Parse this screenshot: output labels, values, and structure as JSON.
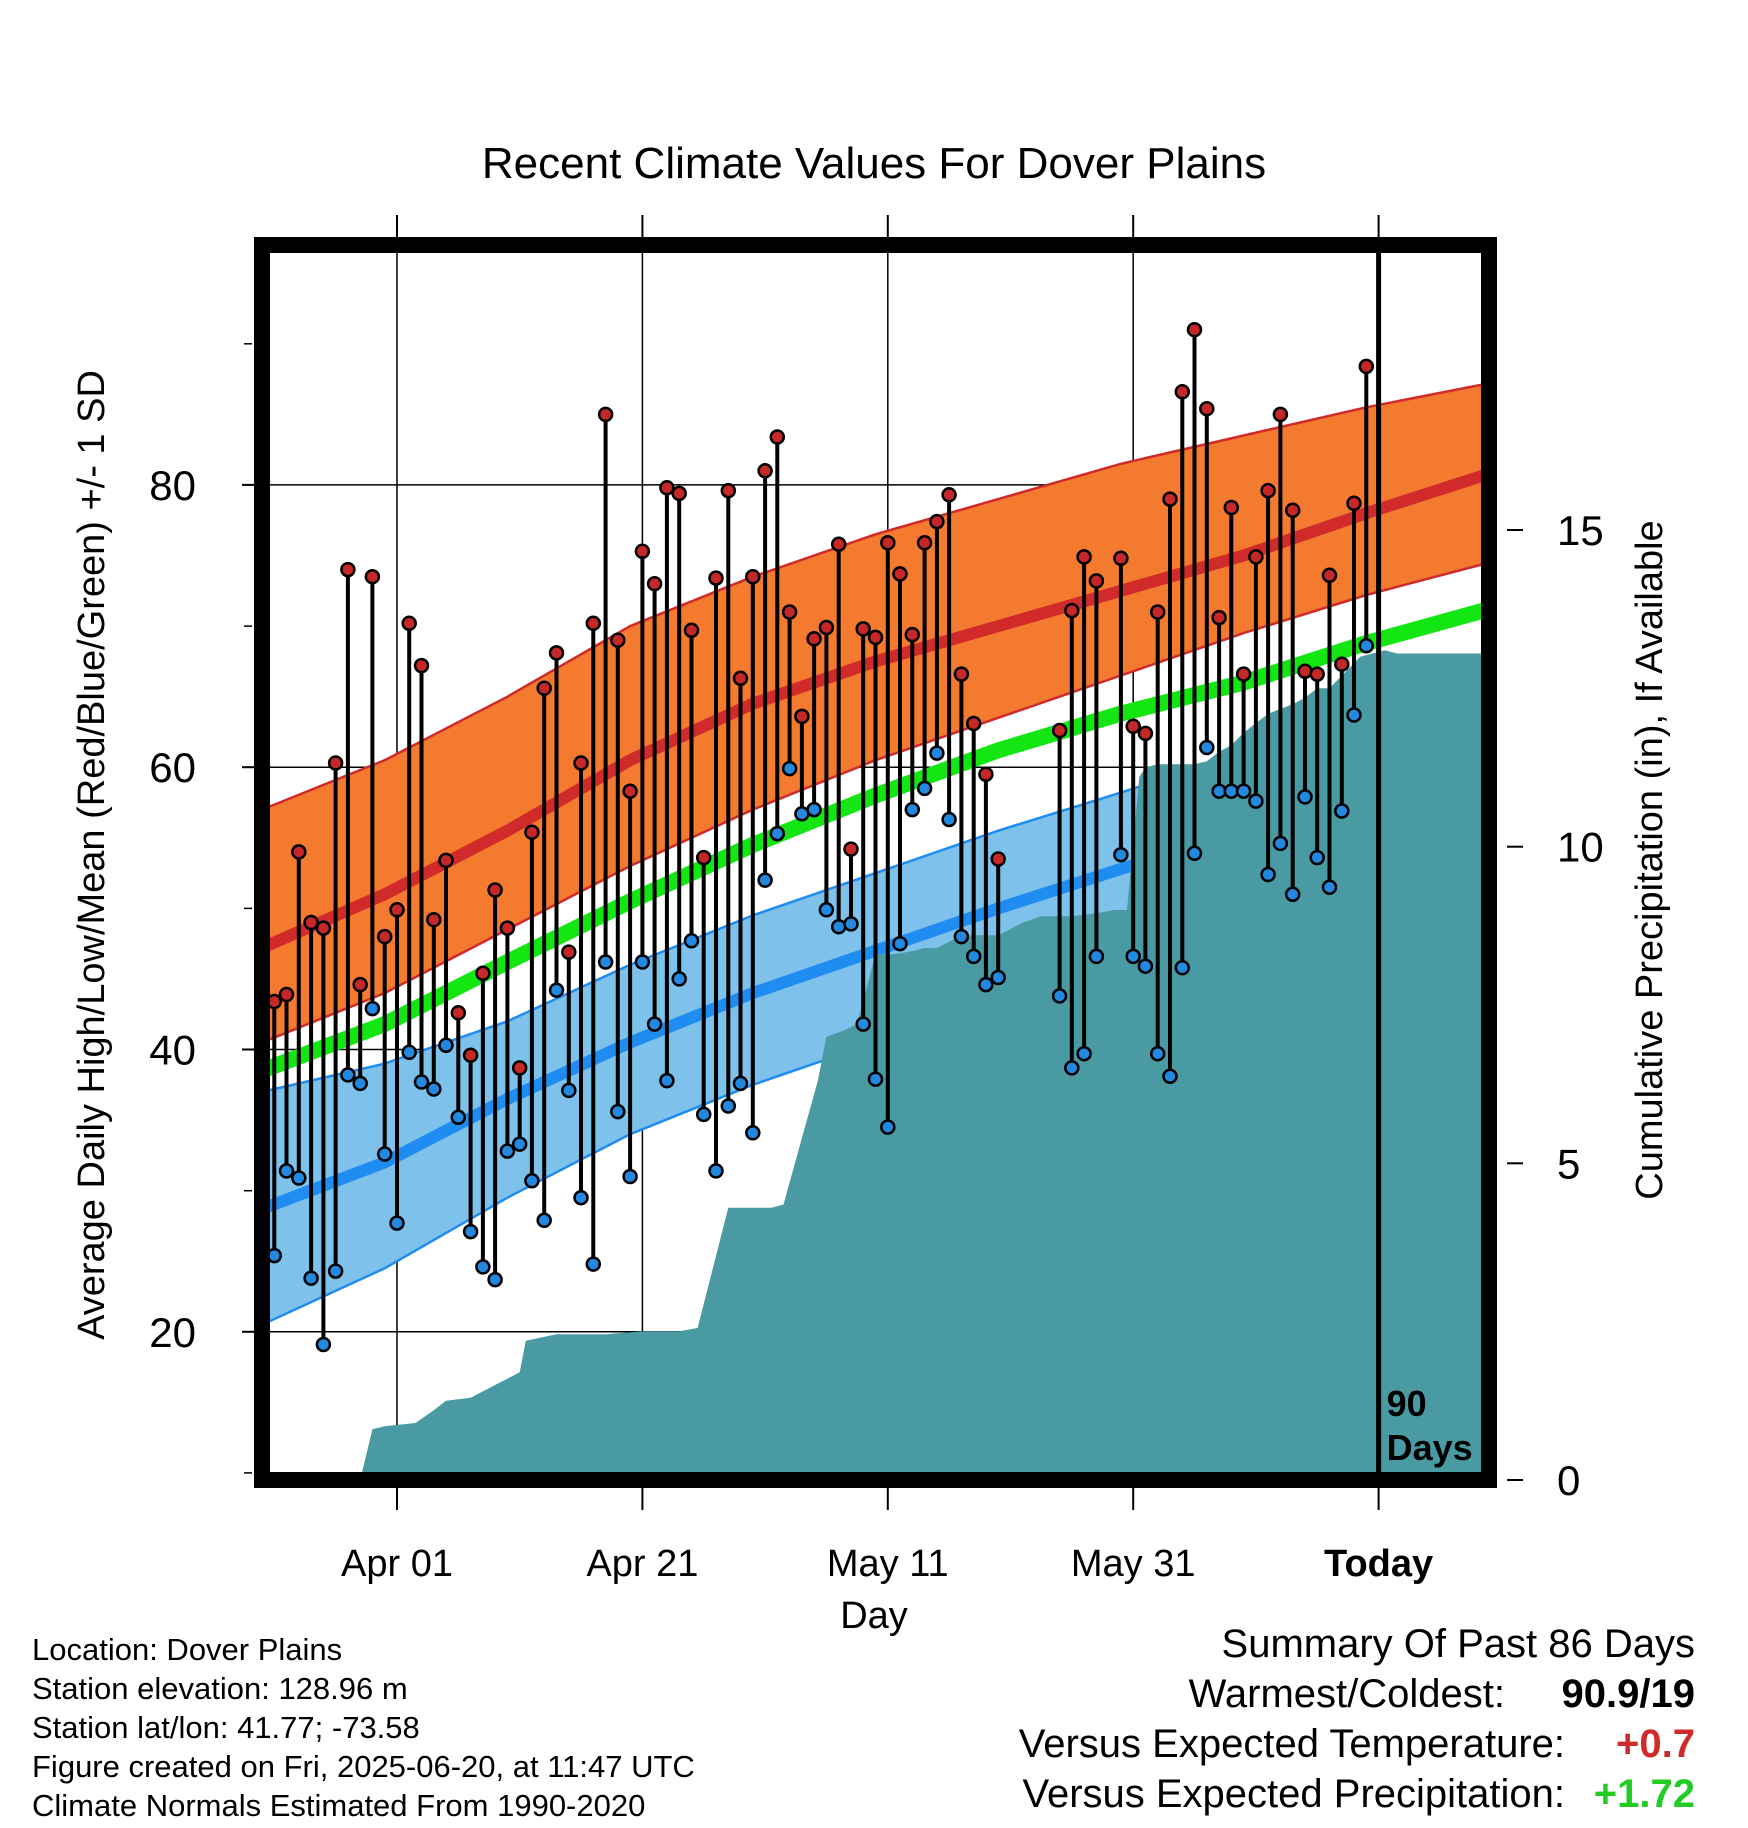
{
  "chart_data": {
    "type": "line",
    "title": "Recent Climate Values For Dover Plains",
    "xlabel": "Day",
    "ylabel": "Average Daily High/Low/Mean (Red/Blue/Green) +/- 1 SD",
    "y2label": "Cumulative Precipitation (in), If Available",
    "ylim": [
      9.5,
      97
    ],
    "y2lim": [
      0,
      19.5
    ],
    "yticks": [
      20,
      40,
      60,
      80
    ],
    "y2ticks": [
      0,
      5,
      10,
      15
    ],
    "xticks": [
      {
        "day": 11,
        "label": "Apr 01"
      },
      {
        "day": 31,
        "label": "Apr 21"
      },
      {
        "day": 51,
        "label": "May 11"
      },
      {
        "day": 71,
        "label": "May 31"
      },
      {
        "day": 91,
        "label": "Today"
      }
    ],
    "xlim": [
      0,
      100
    ],
    "today_day": 91,
    "today_note": [
      "90",
      "Days"
    ],
    "grid": true,
    "colors": {
      "high_band": "#f47a30",
      "high_line": "#d12a2a",
      "low_band": "#7ec1ea",
      "low_line": "#1e8cf0",
      "mean_line": "#14e614",
      "precip": "#4a9aa3",
      "high_point": "#c62828",
      "low_point": "#2288e0"
    },
    "normals": {
      "day": [
        0,
        10,
        20,
        30,
        40,
        50,
        60,
        70,
        80,
        90,
        100
      ],
      "high_lower": [
        40.5,
        44,
        48.5,
        53,
        57,
        60.5,
        63.5,
        66.5,
        69.5,
        72.2,
        74.5
      ],
      "high_mean": [
        47.2,
        51,
        55.5,
        60.5,
        64.5,
        67.5,
        70,
        72.5,
        75,
        78,
        80.8
      ],
      "high_upper": [
        57,
        60.5,
        65,
        70,
        73.5,
        76.5,
        79,
        81.5,
        83.5,
        85.5,
        87.2
      ],
      "mean": [
        38.5,
        41.8,
        46.2,
        50.5,
        54.5,
        58,
        61.2,
        63.8,
        66,
        68.8,
        71.2
      ],
      "low_upper": [
        37,
        39,
        42,
        46,
        49.5,
        52.5,
        55.5,
        58.2,
        61,
        64,
        66.7
      ],
      "low_mean": [
        28.7,
        32,
        36.5,
        40.5,
        44,
        47,
        50,
        52.8,
        55.5,
        58.5,
        61.2
      ],
      "low_lower": [
        20.5,
        24.5,
        29.5,
        34,
        37.5,
        40.5,
        44,
        47,
        50,
        53.5,
        55.8
      ]
    },
    "daily": {
      "day": [
        0,
        1,
        2,
        3,
        4,
        5,
        6,
        7,
        8,
        9,
        10,
        11,
        12,
        13,
        14,
        15,
        16,
        17,
        18,
        19,
        20,
        21,
        22,
        23,
        24,
        25,
        26,
        27,
        28,
        29,
        30,
        31,
        32,
        33,
        34,
        35,
        36,
        37,
        38,
        39,
        40,
        41,
        42,
        43,
        44,
        45,
        46,
        47,
        48,
        49,
        50,
        51,
        52,
        53,
        54,
        55,
        56,
        57,
        58,
        59,
        60,
        61,
        62,
        63,
        64,
        65,
        66,
        67,
        68,
        69,
        70,
        71,
        72,
        73,
        74,
        75,
        76,
        77,
        78,
        79,
        80,
        81,
        82,
        83,
        84,
        85,
        86,
        87,
        88,
        89,
        90
      ],
      "high": [
        60.8,
        43.4,
        43.9,
        54,
        49,
        48.6,
        60.3,
        74,
        44.6,
        73.5,
        48,
        49.9,
        70.2,
        67.2,
        49.2,
        53.4,
        42.6,
        39.6,
        45.4,
        51.3,
        48.6,
        38.7,
        55.4,
        65.6,
        68.1,
        46.9,
        60.3,
        70.2,
        85,
        69,
        58.3,
        75.3,
        73,
        79.8,
        79.4,
        69.7,
        53.6,
        73.4,
        79.6,
        66.3,
        73.5,
        81,
        83.4,
        71,
        63.6,
        69.1,
        69.9,
        75.8,
        54.2,
        69.8,
        69.2,
        75.9,
        73.7,
        69.4,
        75.9,
        77.4,
        79.3,
        66.6,
        63.1,
        59.5,
        53.5,
        null,
        null,
        null,
        null,
        62.6,
        71.1,
        74.9,
        73.2,
        null,
        74.8,
        62.9,
        62.4,
        71,
        79,
        86.6,
        91,
        85.4,
        70.6,
        78.4,
        66.6,
        74.9,
        79.6,
        85,
        78.2,
        66.8,
        66.6,
        73.6,
        67.3,
        78.7,
        88.4
      ],
      "low": [
        20.9,
        25.4,
        31.4,
        30.9,
        23.8,
        19.1,
        24.3,
        38.2,
        37.6,
        42.9,
        32.6,
        27.7,
        39.8,
        37.7,
        37.2,
        40.3,
        35.2,
        27.1,
        24.6,
        23.7,
        32.8,
        33.3,
        30.7,
        27.9,
        44.2,
        37.1,
        29.5,
        24.8,
        46.2,
        35.6,
        31,
        46.2,
        41.8,
        37.8,
        45,
        47.7,
        35.4,
        31.4,
        36,
        37.6,
        34.1,
        52,
        55.3,
        59.9,
        56.7,
        57,
        49.9,
        48.7,
        48.9,
        41.8,
        37.9,
        34.5,
        47.5,
        57,
        58.5,
        61,
        56.3,
        48,
        46.6,
        44.6,
        45.1,
        null,
        null,
        null,
        null,
        43.8,
        38.7,
        39.7,
        46.6,
        null,
        53.8,
        46.6,
        45.9,
        39.7,
        38.1,
        45.8,
        53.9,
        61.4,
        58.3,
        58.3,
        58.3,
        57.6,
        52.4,
        54.6,
        51,
        57.9,
        53.6,
        51.5,
        56.9,
        63.7,
        68.6
      ]
    },
    "precipitation": {
      "day": [
        8,
        9,
        10,
        12.5,
        14,
        15,
        17,
        19,
        21,
        21.5,
        24,
        28,
        31,
        34,
        35.5,
        38,
        40,
        41.5,
        42.5,
        44,
        45.3,
        46,
        47.5,
        48.5,
        50,
        51.5,
        53,
        54,
        55,
        56,
        57,
        58,
        60,
        62,
        63.5,
        64.5,
        66,
        68,
        69.5,
        70.5,
        71.5,
        72,
        73,
        74,
        75,
        76,
        77,
        78,
        79,
        80,
        82,
        84,
        85,
        86,
        87,
        88.5,
        89.5,
        90.5,
        91.5,
        92.5,
        100
      ],
      "value": [
        0,
        0.8,
        0.85,
        0.9,
        1.1,
        1.25,
        1.3,
        1.5,
        1.7,
        2.2,
        2.3,
        2.3,
        2.35,
        2.35,
        2.4,
        4.3,
        4.3,
        4.3,
        4.35,
        5.4,
        6.3,
        7.0,
        7.1,
        7.2,
        8.3,
        8.3,
        8.35,
        8.4,
        8.4,
        8.5,
        8.6,
        8.6,
        8.6,
        8.8,
        8.9,
        8.9,
        8.9,
        8.95,
        9.0,
        9.0,
        11.1,
        11.25,
        11.3,
        11.3,
        11.3,
        11.3,
        11.35,
        11.5,
        11.6,
        11.8,
        12.1,
        12.25,
        12.35,
        12.5,
        12.5,
        12.8,
        13.0,
        13.05,
        13.1,
        13.05,
        13.05
      ]
    }
  },
  "footer": {
    "location": "Location: Dover Plains",
    "elevation": "Station elevation: 128.96 m",
    "latlon": "Station lat/lon: 41.77; -73.58",
    "created": "Figure created on Fri, 2025-06-20, at 11:47 UTC",
    "normals": "Climate Normals Estimated From 1990-2020"
  },
  "summary": {
    "title": "Summary Of Past 86 Days",
    "warmest_label": "Warmest/Coldest:",
    "warmest_value": "90.9/19",
    "temp_label": "Versus Expected Temperature:",
    "temp_value": "+0.7",
    "temp_color": "#d02a2a",
    "precip_label": "Versus Expected Precipitation:",
    "precip_value": "+1.72",
    "precip_color": "#22cc22"
  }
}
